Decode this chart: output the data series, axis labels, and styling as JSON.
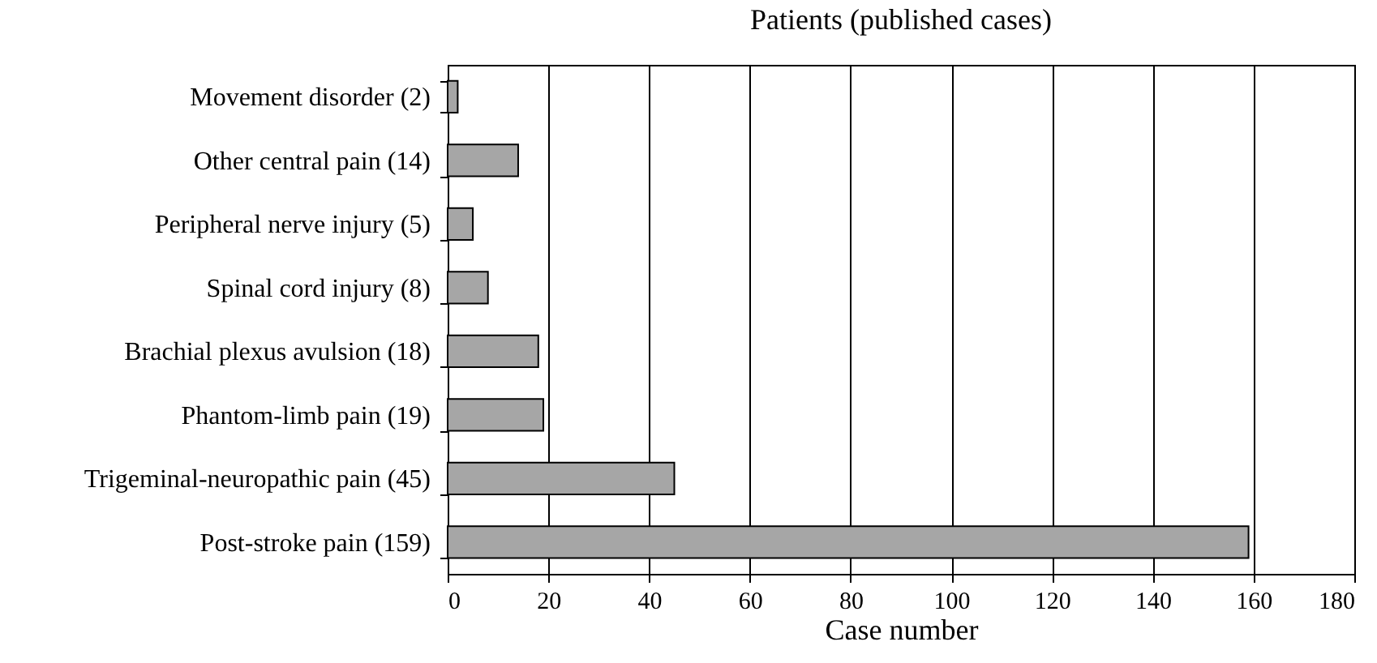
{
  "chart_data": {
    "type": "bar",
    "orientation": "horizontal",
    "title": "Patients (published cases)",
    "xlabel": "Case number",
    "categories": [
      "Movement disorder (2)",
      "Other central pain (14)",
      "Peripheral nerve injury (5)",
      "Spinal cord injury (8)",
      "Brachial plexus avulsion (18)",
      "Phantom-limb pain (19)",
      "Trigeminal-neuropathic pain (45)",
      "Post-stroke pain (159)"
    ],
    "values": [
      2,
      14,
      5,
      8,
      18,
      19,
      45,
      159
    ],
    "color": "#a6a6a6",
    "xlim": [
      0,
      180
    ],
    "xticks": [
      0,
      20,
      40,
      60,
      80,
      100,
      120,
      140,
      160,
      180
    ],
    "grid": "x"
  }
}
